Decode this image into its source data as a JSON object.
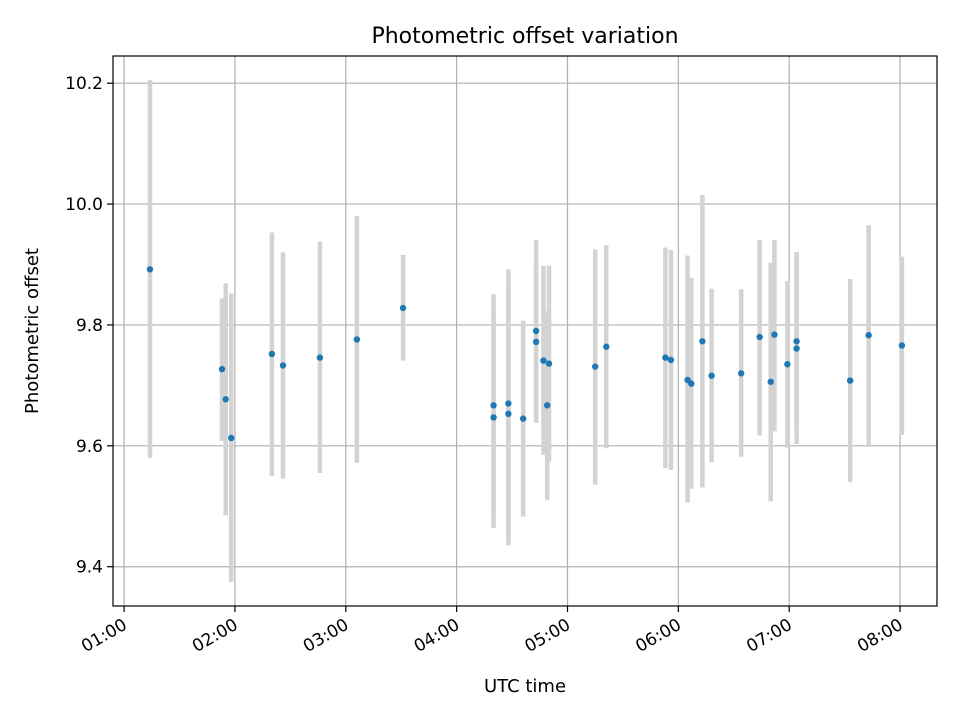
{
  "chart_data": {
    "type": "scatter",
    "title": "Photometric offset variation",
    "xlabel": "UTC time",
    "ylabel": "Photometric offset",
    "x_ticks": [
      "01:00",
      "02:00",
      "03:00",
      "04:00",
      "05:00",
      "06:00",
      "07:00",
      "08:00"
    ],
    "y_ticks": [
      "9.4",
      "9.6",
      "9.8",
      "10.0",
      "10.2"
    ],
    "xlim": [
      "00:54",
      "08:20"
    ],
    "ylim": [
      9.335,
      10.245
    ],
    "grid": true,
    "colors": {
      "point": "#1f77b4",
      "errorbar": "#d3d3d3",
      "grid": "#b0b0b0"
    },
    "points": [
      {
        "t": "01:14",
        "y": 9.892,
        "lo": 9.58,
        "hi": 10.205
      },
      {
        "t": "01:53",
        "y": 9.727,
        "lo": 9.608,
        "hi": 9.844
      },
      {
        "t": "01:55",
        "y": 9.677,
        "lo": 9.485,
        "hi": 9.869
      },
      {
        "t": "01:58",
        "y": 9.613,
        "lo": 9.375,
        "hi": 9.852
      },
      {
        "t": "02:20",
        "y": 9.752,
        "lo": 9.55,
        "hi": 9.953
      },
      {
        "t": "02:26",
        "y": 9.733,
        "lo": 9.546,
        "hi": 9.92
      },
      {
        "t": "02:46",
        "y": 9.746,
        "lo": 9.555,
        "hi": 9.938
      },
      {
        "t": "03:06",
        "y": 9.776,
        "lo": 9.572,
        "hi": 9.98
      },
      {
        "t": "03:31",
        "y": 9.828,
        "lo": 9.741,
        "hi": 9.916
      },
      {
        "t": "04:20",
        "y": 9.667,
        "lo": 9.483,
        "hi": 9.851
      },
      {
        "t": "04:20",
        "y": 9.647,
        "lo": 9.464,
        "hi": 9.829
      },
      {
        "t": "04:28",
        "y": 9.67,
        "lo": 9.449,
        "hi": 9.892
      },
      {
        "t": "04:28",
        "y": 9.653,
        "lo": 9.435,
        "hi": 9.871
      },
      {
        "t": "04:36",
        "y": 9.645,
        "lo": 9.483,
        "hi": 9.807
      },
      {
        "t": "04:43",
        "y": 9.79,
        "lo": 9.638,
        "hi": 9.941
      },
      {
        "t": "04:43",
        "y": 9.772,
        "lo": 9.645,
        "hi": 9.898
      },
      {
        "t": "04:47",
        "y": 9.741,
        "lo": 9.585,
        "hi": 9.898
      },
      {
        "t": "04:49",
        "y": 9.667,
        "lo": 9.51,
        "hi": 9.823
      },
      {
        "t": "04:50",
        "y": 9.736,
        "lo": 9.574,
        "hi": 9.898
      },
      {
        "t": "05:15",
        "y": 9.731,
        "lo": 9.536,
        "hi": 9.925
      },
      {
        "t": "05:21",
        "y": 9.764,
        "lo": 9.596,
        "hi": 9.932
      },
      {
        "t": "05:53",
        "y": 9.746,
        "lo": 9.563,
        "hi": 9.928
      },
      {
        "t": "05:56",
        "y": 9.742,
        "lo": 9.56,
        "hi": 9.924
      },
      {
        "t": "06:05",
        "y": 9.709,
        "lo": 9.506,
        "hi": 9.915
      },
      {
        "t": "06:07",
        "y": 9.703,
        "lo": 9.529,
        "hi": 9.878
      },
      {
        "t": "06:13",
        "y": 9.773,
        "lo": 9.531,
        "hi": 10.015
      },
      {
        "t": "06:18",
        "y": 9.716,
        "lo": 9.573,
        "hi": 9.86
      },
      {
        "t": "06:34",
        "y": 9.72,
        "lo": 9.582,
        "hi": 9.859
      },
      {
        "t": "06:44",
        "y": 9.78,
        "lo": 9.617,
        "hi": 9.941
      },
      {
        "t": "06:50",
        "y": 9.706,
        "lo": 9.508,
        "hi": 9.903
      },
      {
        "t": "06:52",
        "y": 9.784,
        "lo": 9.624,
        "hi": 9.941
      },
      {
        "t": "06:59",
        "y": 9.735,
        "lo": 9.597,
        "hi": 9.873
      },
      {
        "t": "07:04",
        "y": 9.773,
        "lo": 9.625,
        "hi": 9.919
      },
      {
        "t": "07:04",
        "y": 9.761,
        "lo": 9.603,
        "hi": 9.921
      },
      {
        "t": "07:33",
        "y": 9.708,
        "lo": 9.54,
        "hi": 9.876
      },
      {
        "t": "07:43",
        "y": 9.783,
        "lo": 9.6,
        "hi": 9.965
      },
      {
        "t": "08:01",
        "y": 9.766,
        "lo": 9.618,
        "hi": 9.913
      }
    ]
  }
}
